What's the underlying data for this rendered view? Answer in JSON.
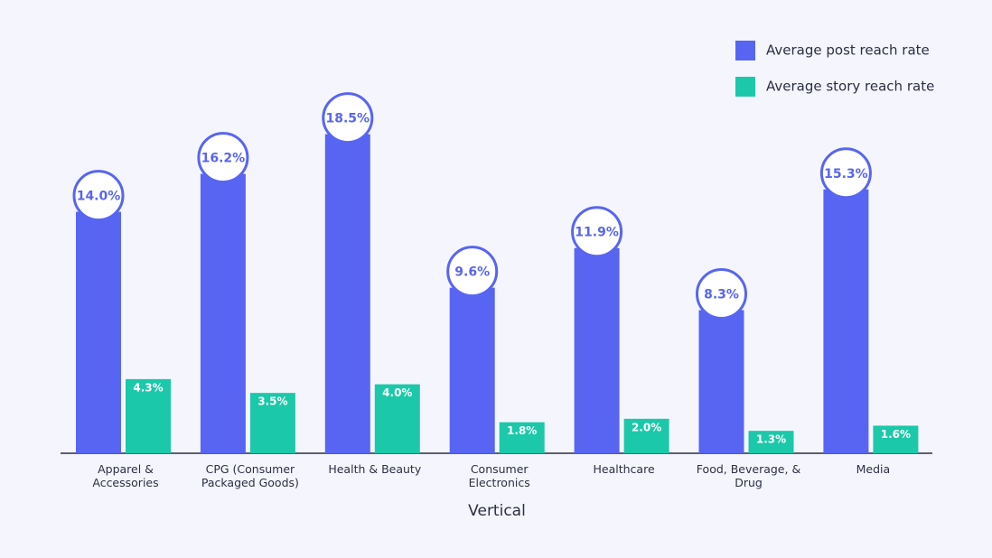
{
  "chart_data": {
    "type": "bar",
    "categories": [
      "Apparel & Accessories",
      "CPG (Consumer Packaged Goods)",
      "Health & Beauty",
      "Consumer Electronics",
      "Healthcare",
      "Food, Beverage, & Drug",
      "Media"
    ],
    "x_label": "Vertical",
    "series": [
      {
        "name": "Average post reach rate",
        "color": "#5865f2",
        "values": [
          14.0,
          16.2,
          18.5,
          9.6,
          11.9,
          8.3,
          15.3
        ],
        "value_labels": [
          "14.0%",
          "16.2%",
          "18.5%",
          "9.6%",
          "11.9%",
          "8.3%",
          "15.3%"
        ]
      },
      {
        "name": "Average story reach rate",
        "color": "#1cc8aa",
        "values": [
          4.3,
          3.5,
          4.0,
          1.8,
          2.0,
          1.3,
          1.6
        ],
        "value_labels": [
          "4.3%",
          "3.5%",
          "4.0%",
          "1.8%",
          "2.0%",
          "1.3%",
          "1.6%"
        ]
      }
    ],
    "legend": "top-right"
  }
}
